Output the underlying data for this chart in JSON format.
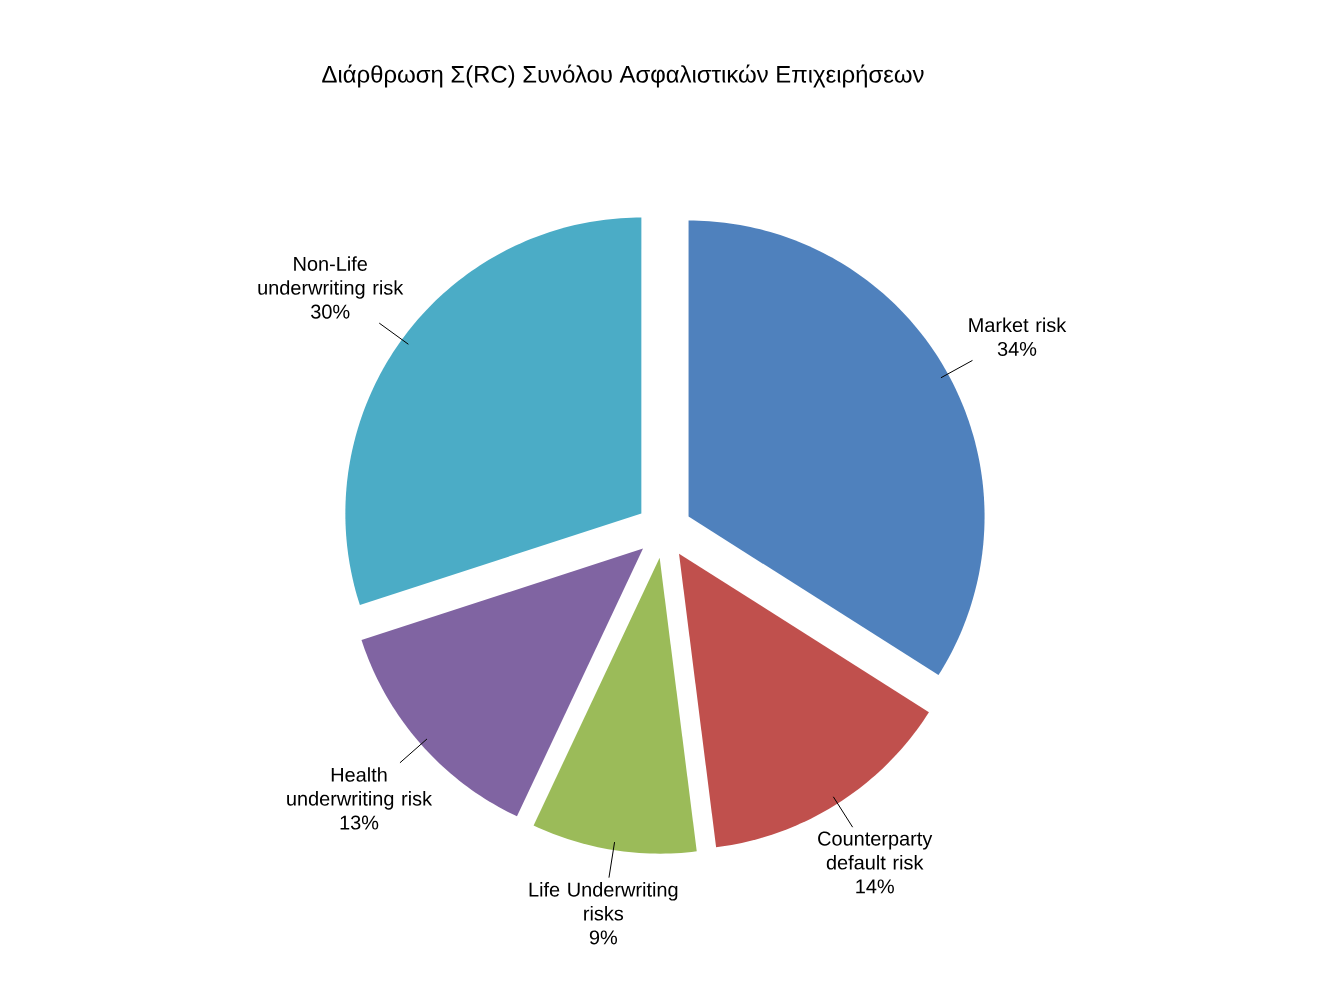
{
  "chart_data": {
    "type": "pie",
    "title": "Διάρθρωση Σ(RC) Συνόλου Ασφαλιστικών Επιχειρήσεων",
    "categories": [
      "Market risk",
      "Counterparty default risk",
      "Life Underwriting risks",
      "Health underwriting risk",
      "Non-Life underwriting risk"
    ],
    "values": [
      34,
      14,
      9,
      13,
      30
    ],
    "value_labels": [
      "34%",
      "14%",
      "9%",
      "13%",
      "30%"
    ],
    "colors": [
      "#4f81bd",
      "#c0504d",
      "#9bbb59",
      "#8064a2",
      "#4bacc6"
    ]
  }
}
